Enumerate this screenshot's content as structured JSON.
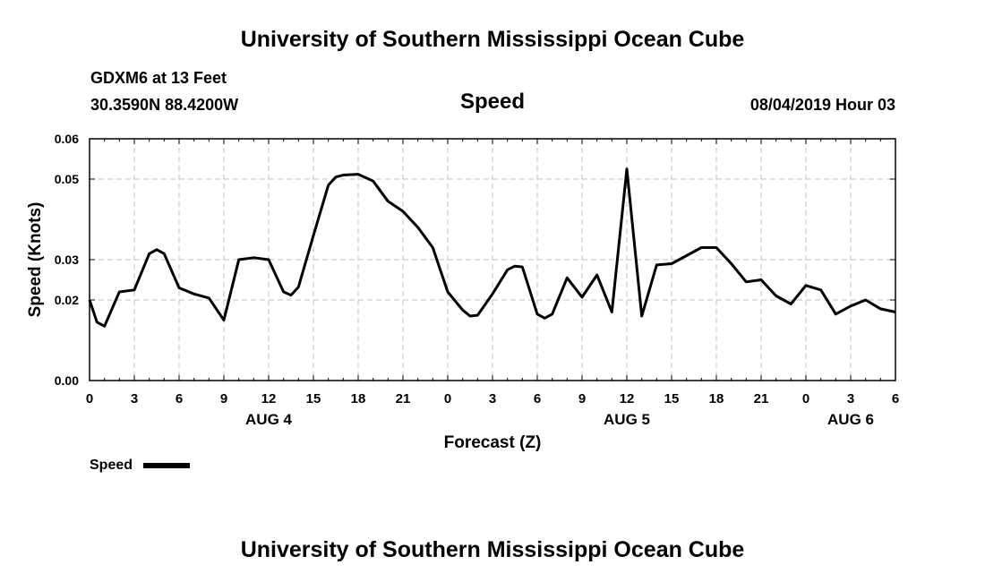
{
  "page": {
    "title_top": "University of Southern Mississippi Ocean Cube",
    "title_bottom": "University of Southern Mississippi Ocean Cube",
    "station": "GDXM6 at 13 Feet",
    "location": "30.3590N 88.4200W",
    "datetime": "08/04/2019 Hour 03"
  },
  "chart_data": {
    "type": "line",
    "title": "Speed",
    "xlabel": "Forecast (Z)",
    "ylabel": "Speed (Knots)",
    "xlim": [
      0,
      54
    ],
    "ylim": [
      0,
      0.06
    ],
    "yticks": [
      0.0,
      0.02,
      0.03,
      0.05,
      0.06
    ],
    "ytick_labels": [
      "0.00",
      "0.02",
      "0.03",
      "0.05",
      "0.06"
    ],
    "xticks": [
      0,
      3,
      6,
      9,
      12,
      15,
      18,
      21,
      24,
      27,
      30,
      33,
      36,
      39,
      42,
      45,
      48,
      51,
      54
    ],
    "xtick_labels": [
      "0",
      "3",
      "6",
      "9",
      "12",
      "15",
      "18",
      "21",
      "0",
      "3",
      "6",
      "9",
      "12",
      "15",
      "18",
      "21",
      "0",
      "3",
      "6"
    ],
    "date_labels": [
      {
        "x": 12,
        "label": "AUG 4"
      },
      {
        "x": 36,
        "label": "AUG 5"
      },
      {
        "x": 51,
        "label": "AUG 6"
      }
    ],
    "grid": true,
    "legend": {
      "label": "Speed",
      "placement": "bottom-left"
    },
    "series": [
      {
        "name": "Speed",
        "x": [
          0,
          0.5,
          1,
          2,
          3,
          4,
          4.5,
          5,
          6,
          7,
          8,
          9,
          10,
          11,
          12,
          13,
          13.5,
          14,
          15,
          16,
          16.5,
          17,
          18,
          19,
          20,
          21,
          22,
          23,
          24,
          25,
          25.5,
          26,
          27,
          28,
          28.5,
          29,
          30,
          30.5,
          31,
          32,
          33,
          34,
          35,
          36,
          37,
          38,
          39,
          40,
          41,
          42,
          43,
          44,
          45,
          46,
          47,
          48,
          49,
          50,
          51,
          52,
          53,
          54
        ],
        "values": [
          0.02,
          0.0145,
          0.0135,
          0.022,
          0.0225,
          0.0315,
          0.0325,
          0.0315,
          0.023,
          0.0215,
          0.0205,
          0.015,
          0.03,
          0.0305,
          0.03,
          0.022,
          0.0212,
          0.0232,
          0.036,
          0.0485,
          0.0505,
          0.051,
          0.0512,
          0.0495,
          0.0445,
          0.042,
          0.038,
          0.033,
          0.022,
          0.0175,
          0.016,
          0.0162,
          0.0215,
          0.0275,
          0.0284,
          0.0282,
          0.0165,
          0.0155,
          0.0165,
          0.0255,
          0.0207,
          0.0262,
          0.017,
          0.0525,
          0.016,
          0.0287,
          0.029,
          0.031,
          0.033,
          0.033,
          0.029,
          0.0245,
          0.025,
          0.021,
          0.019,
          0.0236,
          0.0225,
          0.0165,
          0.0185,
          0.02,
          0.0178,
          0.017
        ]
      }
    ]
  }
}
